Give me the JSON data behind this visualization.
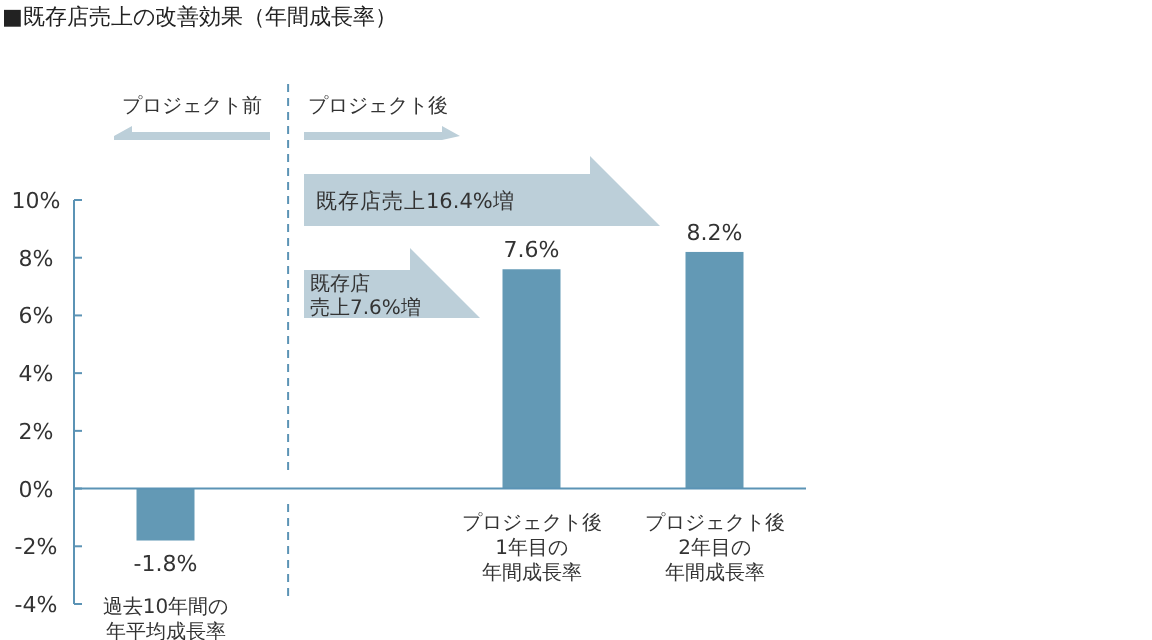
{
  "chart_data": {
    "type": "bar",
    "title": "■既存店売上の改善効果（年間成長率）",
    "categories": [
      "過去10年間の年平均成長率",
      null,
      "プロジェクト後1年目の年間成長率",
      "プロジェクト後2年目の年間成長率"
    ],
    "values": [
      -1.8,
      null,
      7.6,
      8.2
    ],
    "color": "#6399b5",
    "value_labels": [
      "-1.8%",
      null,
      "7.6%",
      "8.2%"
    ],
    "ylim": [
      -4,
      10
    ],
    "yticks": [
      {
        "value": -4,
        "label": "-4%"
      },
      {
        "value": -2,
        "label": "-2%"
      },
      {
        "value": 0,
        "label": "0%"
      },
      {
        "value": 2,
        "label": "2%"
      },
      {
        "value": 4,
        "label": "4%"
      },
      {
        "value": 6,
        "label": "6%"
      },
      {
        "value": 8,
        "label": "8%"
      },
      {
        "value": 10,
        "label": "10%"
      }
    ],
    "annotations": [
      "プロジェクト前",
      "プロジェクト後",
      "既存店売上16.4%増",
      "既存店売上7.6%増"
    ],
    "grid": false
  }
}
